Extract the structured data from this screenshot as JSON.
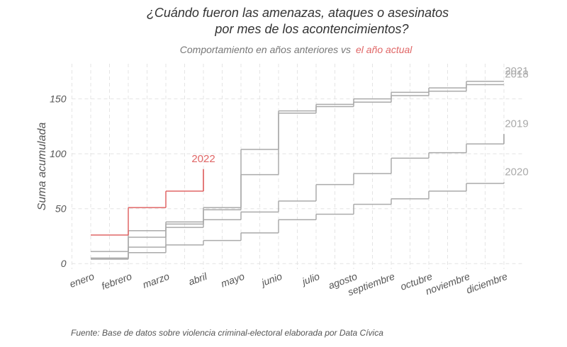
{
  "chart_data": {
    "type": "step",
    "title": [
      "¿Cuándo fueron las amenazas, ataques o asesinatos",
      "por mes de los acontencimientos?"
    ],
    "subtitle": [
      "Comportamiento en años anteriores vs",
      "el año actual"
    ],
    "y_label": "Suma acumulada",
    "caption": "Fuente: Base de datos sobre violencia criminal-electoral elaborada por Data Cívica",
    "categories": [
      "enero",
      "febrero",
      "marzo",
      "abril",
      "mayo",
      "junio",
      "julio",
      "agosto",
      "septiembre",
      "octubre",
      "noviembre",
      "diciembre"
    ],
    "series": [
      {
        "name": "2021",
        "color": "#aaaaaa",
        "values": [
          11,
          30,
          38,
          51,
          104,
          139,
          145,
          150,
          156,
          160,
          166,
          166
        ]
      },
      {
        "name": "2018",
        "color": "#aaaaaa",
        "values": [
          5,
          24,
          36,
          49,
          81,
          137,
          143,
          147,
          153,
          157,
          163,
          163
        ]
      },
      {
        "name": "2019",
        "color": "#aaaaaa",
        "values": [
          4,
          15,
          33,
          40,
          47,
          57,
          72,
          82,
          96,
          101,
          109,
          118
        ]
      },
      {
        "name": "2020",
        "color": "#aaaaaa",
        "values": [
          5,
          10,
          17,
          21,
          28,
          40,
          45,
          54,
          59,
          66,
          73,
          74
        ]
      },
      {
        "name": "2022",
        "color": "#e06666",
        "values": [
          26,
          51,
          66,
          86,
          null,
          null,
          null,
          null,
          null,
          null,
          null,
          null
        ]
      }
    ],
    "ylim": [
      -5,
      182
    ],
    "yticks": [
      0,
      50,
      100,
      150
    ],
    "grid": true
  }
}
